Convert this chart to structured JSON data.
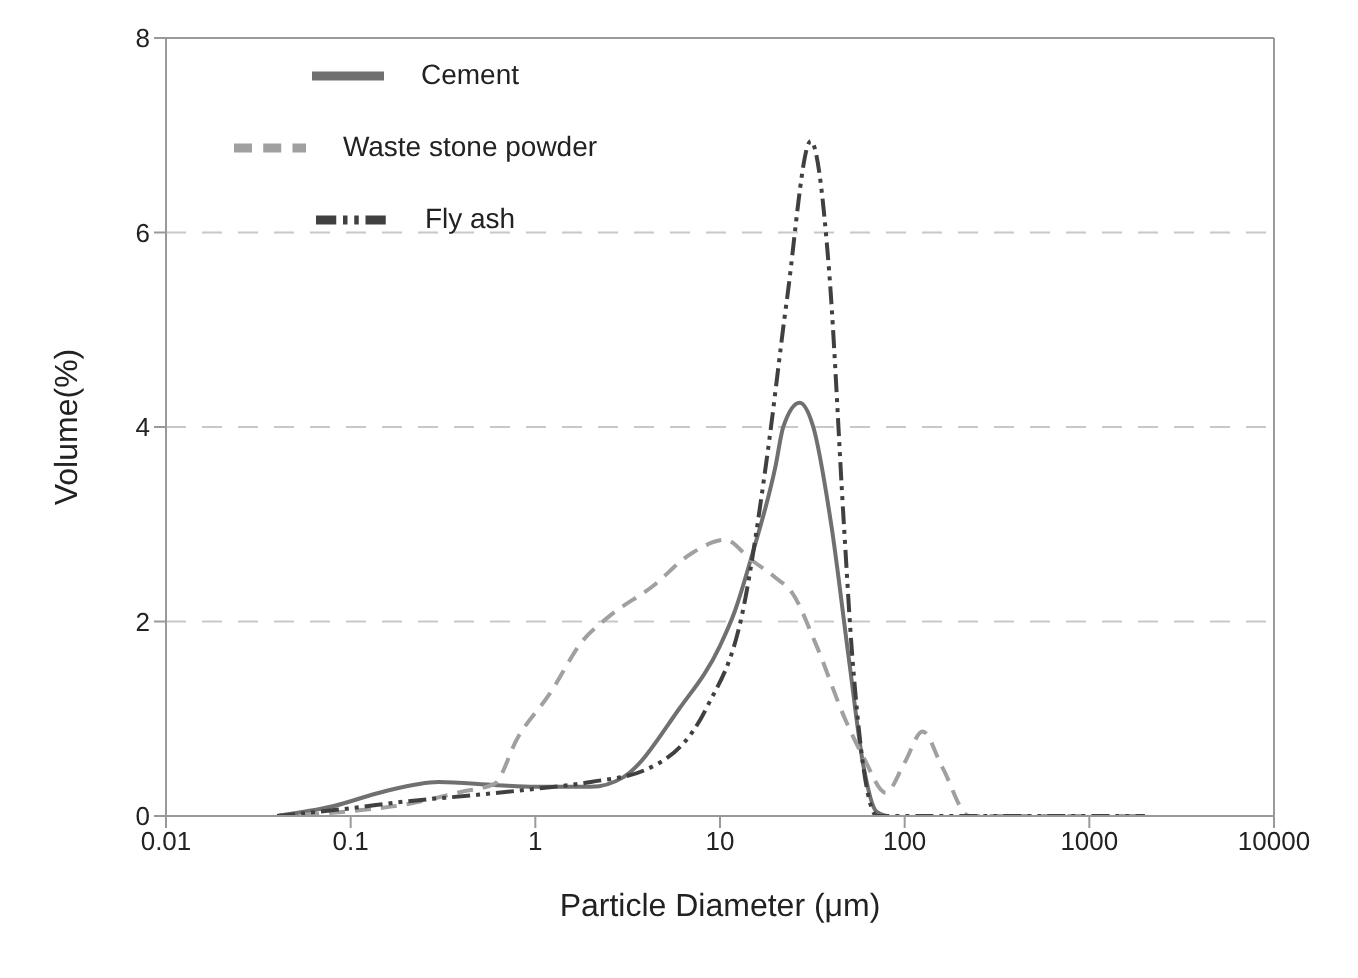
{
  "chart_data": {
    "type": "line",
    "xlabel": "Particle Diameter (μm)",
    "ylabel": "Volume(%)",
    "log": "x",
    "xlim": [
      0.01,
      10000
    ],
    "xticks": [
      0.01,
      0.1,
      1,
      10,
      100,
      1000,
      10000
    ],
    "ylim": [
      0,
      8
    ],
    "yticks": [
      0,
      2,
      4,
      6,
      8
    ],
    "grid": "y",
    "legend": "top left",
    "marker": "none",
    "series": [
      {
        "name": "Cement",
        "color": "#707070",
        "line_style": "solid",
        "x": [
          0.04,
          0.08,
          0.15,
          0.3,
          0.6,
          1,
          2,
          3,
          6,
          10,
          12,
          15,
          20,
          22,
          27,
          32,
          40,
          50,
          60,
          70,
          80
        ],
        "values": [
          0,
          0.1,
          0.25,
          0.35,
          0.32,
          0.3,
          0.3,
          0.4,
          1.1,
          1.75,
          2.1,
          2.7,
          3.6,
          4.0,
          4.25,
          4.0,
          3.0,
          1.6,
          0.5,
          0.05,
          0
        ]
      },
      {
        "name": "Waste stone powder",
        "color": "#a0a0a0",
        "line_style": "dashed",
        "x": [
          0.04,
          0.1,
          0.2,
          0.4,
          0.6,
          0.8,
          1.2,
          1.8,
          2.5,
          4.3,
          7,
          10.7,
          14.6,
          20,
          24.5,
          33,
          48,
          60,
          79,
          100,
          125,
          160,
          224,
          2000
        ],
        "values": [
          0,
          0.05,
          0.12,
          0.25,
          0.33,
          0.8,
          1.26,
          1.8,
          2.05,
          2.36,
          2.7,
          2.84,
          2.64,
          2.45,
          2.3,
          1.77,
          0.98,
          0.6,
          0.24,
          0.55,
          0.87,
          0.5,
          0,
          0
        ]
      },
      {
        "name": "Fly ash",
        "color": "#404040",
        "line_style": "dashdotdot",
        "x": [
          0.04,
          0.1,
          0.2,
          0.5,
          1,
          2,
          3.9,
          8.5,
          13.5,
          18,
          23,
          31,
          39,
          47,
          52,
          71,
          2000
        ],
        "values": [
          0,
          0.08,
          0.15,
          0.22,
          0.28,
          0.35,
          0.47,
          1.12,
          2.17,
          3.7,
          5.3,
          6.94,
          5.6,
          2.96,
          1.65,
          0,
          0
        ]
      }
    ]
  }
}
